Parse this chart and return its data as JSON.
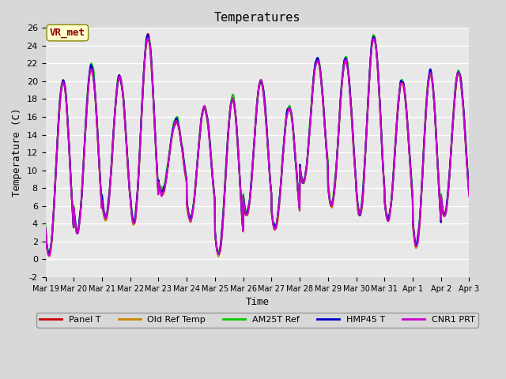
{
  "title": "Temperatures",
  "ylabel": "Temperature (C)",
  "xlabel": "Time",
  "annotation": "VR_met",
  "ylim": [
    -2,
    26
  ],
  "background_color": "#e8e8e8",
  "plot_bg_color": "#e8e8e8",
  "series": {
    "Panel T": {
      "color": "#cc0000",
      "lw": 1.5
    },
    "Old Ref Temp": {
      "color": "#cc8800",
      "lw": 1.5
    },
    "AM25T Ref": {
      "color": "#00cc00",
      "lw": 1.5
    },
    "HMP45 T": {
      "color": "#0000cc",
      "lw": 1.5
    },
    "CNR1 PRT": {
      "color": "#cc00cc",
      "lw": 1.5
    }
  },
  "x_tick_labels": [
    "Mar 19",
    "Mar 20",
    "Mar 21",
    "Mar 22",
    "Mar 23",
    "Mar 24",
    "Mar 25",
    "Mar 26",
    "Mar 27",
    "Mar 28",
    "Mar 29",
    "Mar 30",
    "Mar 31",
    "Apr 1",
    "Apr 2",
    "Apr 3"
  ],
  "num_days": 15,
  "day_peaks": [
    20.0,
    21.5,
    20.5,
    25.0,
    15.5,
    17.0,
    18.0,
    20.0,
    17.0,
    22.5,
    22.5,
    25.0,
    20.0,
    21.0,
    21.0
  ],
  "day_troughs": [
    0.5,
    3.0,
    4.5,
    4.0,
    7.5,
    4.5,
    0.5,
    5.0,
    3.5,
    8.5,
    6.0,
    5.0,
    4.5,
    1.5,
    5.0
  ]
}
